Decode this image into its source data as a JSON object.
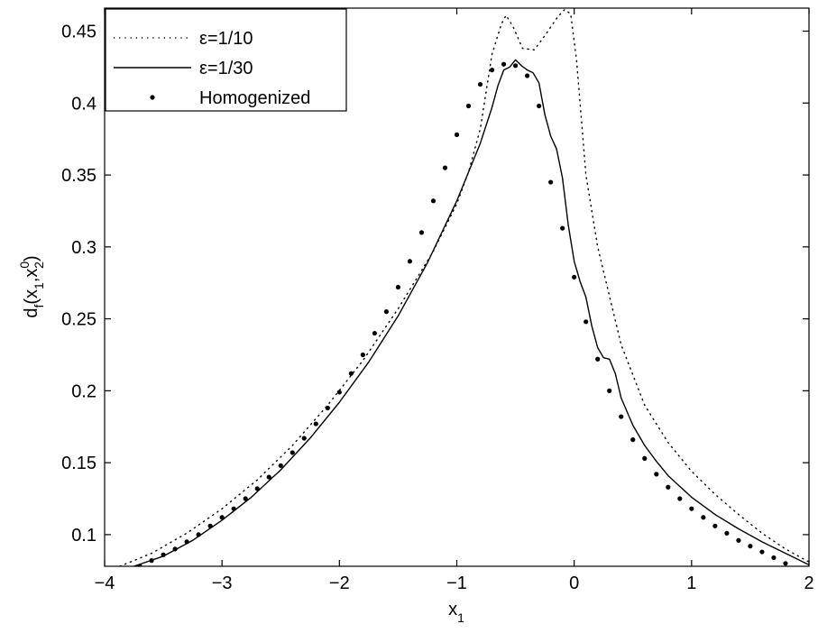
{
  "chart_data": {
    "type": "line",
    "xlabel": "x",
    "xlabel_sub": "1",
    "ylabel": {
      "d": "d",
      "d_sub": "f",
      "open": "(x",
      "x1_sub": "1",
      "comma": ",x",
      "x2_sup": "0",
      "x2_sub": "2",
      "close": ")"
    },
    "xlim": [
      -4,
      2
    ],
    "ylim": [
      0.078,
      0.466
    ],
    "x_ticks": [
      -4,
      -3,
      -2,
      -1,
      0,
      1,
      2
    ],
    "x_tick_labels": [
      "−4",
      "−3",
      "−2",
      "−1",
      "0",
      "1",
      "2"
    ],
    "y_ticks": [
      0.1,
      0.15,
      0.2,
      0.25,
      0.3,
      0.35,
      0.4,
      0.45
    ],
    "y_tick_labels": [
      "0.1",
      "0.15",
      "0.2",
      "0.25",
      "0.3",
      "0.35",
      "0.4",
      "0.45"
    ],
    "grid": false,
    "legend_position": "top-left",
    "series": [
      {
        "name": "ε=1/10",
        "style": "dotted",
        "color": "#000000",
        "points": [
          [
            -3.87,
            0.078
          ],
          [
            -3.6,
            0.087
          ],
          [
            -3.3,
            0.101
          ],
          [
            -3.0,
            0.118
          ],
          [
            -2.7,
            0.138
          ],
          [
            -2.4,
            0.162
          ],
          [
            -2.1,
            0.19
          ],
          [
            -1.8,
            0.221
          ],
          [
            -1.5,
            0.257
          ],
          [
            -1.2,
            0.297
          ],
          [
            -1.0,
            0.33
          ],
          [
            -0.9,
            0.352
          ],
          [
            -0.8,
            0.382
          ],
          [
            -0.7,
            0.434
          ],
          [
            -0.62,
            0.455
          ],
          [
            -0.58,
            0.461
          ],
          [
            -0.52,
            0.453
          ],
          [
            -0.44,
            0.438
          ],
          [
            -0.34,
            0.437
          ],
          [
            -0.24,
            0.448
          ],
          [
            -0.14,
            0.46
          ],
          [
            -0.08,
            0.465
          ],
          [
            -0.03,
            0.462
          ],
          [
            0.02,
            0.43
          ],
          [
            0.1,
            0.35
          ],
          [
            0.2,
            0.3
          ],
          [
            0.4,
            0.232
          ],
          [
            0.6,
            0.19
          ],
          [
            0.8,
            0.164
          ],
          [
            1.0,
            0.144
          ],
          [
            1.2,
            0.128
          ],
          [
            1.4,
            0.114
          ],
          [
            1.6,
            0.101
          ],
          [
            1.8,
            0.09
          ],
          [
            2.0,
            0.081
          ]
        ]
      },
      {
        "name": "ε=1/30",
        "style": "solid",
        "color": "#000000",
        "points": [
          [
            -3.75,
            0.078
          ],
          [
            -3.5,
            0.085
          ],
          [
            -3.25,
            0.096
          ],
          [
            -3.0,
            0.11
          ],
          [
            -2.75,
            0.126
          ],
          [
            -2.5,
            0.145
          ],
          [
            -2.25,
            0.167
          ],
          [
            -2.0,
            0.192
          ],
          [
            -1.75,
            0.22
          ],
          [
            -1.5,
            0.252
          ],
          [
            -1.25,
            0.289
          ],
          [
            -1.0,
            0.332
          ],
          [
            -0.9,
            0.352
          ],
          [
            -0.8,
            0.372
          ],
          [
            -0.7,
            0.397
          ],
          [
            -0.65,
            0.412
          ],
          [
            -0.6,
            0.423
          ],
          [
            -0.55,
            0.425
          ],
          [
            -0.5,
            0.43
          ],
          [
            -0.45,
            0.426
          ],
          [
            -0.4,
            0.423
          ],
          [
            -0.35,
            0.421
          ],
          [
            -0.3,
            0.414
          ],
          [
            -0.25,
            0.392
          ],
          [
            -0.2,
            0.377
          ],
          [
            -0.15,
            0.368
          ],
          [
            -0.1,
            0.348
          ],
          [
            -0.05,
            0.315
          ],
          [
            0.0,
            0.29
          ],
          [
            0.05,
            0.276
          ],
          [
            0.1,
            0.265
          ],
          [
            0.15,
            0.245
          ],
          [
            0.2,
            0.23
          ],
          [
            0.25,
            0.223
          ],
          [
            0.3,
            0.222
          ],
          [
            0.35,
            0.212
          ],
          [
            0.4,
            0.195
          ],
          [
            0.5,
            0.176
          ],
          [
            0.6,
            0.162
          ],
          [
            0.7,
            0.151
          ],
          [
            0.8,
            0.141
          ],
          [
            1.0,
            0.126
          ],
          [
            1.2,
            0.114
          ],
          [
            1.4,
            0.104
          ],
          [
            1.6,
            0.095
          ],
          [
            1.8,
            0.087
          ],
          [
            2.0,
            0.079
          ]
        ]
      },
      {
        "name": "Homogenized",
        "style": "markers",
        "color": "#000000",
        "x": [
          -3.7,
          -3.6,
          -3.5,
          -3.4,
          -3.3,
          -3.2,
          -3.1,
          -3.0,
          -2.9,
          -2.8,
          -2.7,
          -2.6,
          -2.5,
          -2.4,
          -2.3,
          -2.2,
          -2.1,
          -2.0,
          -1.9,
          -1.8,
          -1.7,
          -1.6,
          -1.5,
          -1.4,
          -1.3,
          -1.2,
          -1.1,
          -1.0,
          -0.9,
          -0.8,
          -0.7,
          -0.6,
          -0.5,
          -0.4,
          -0.3,
          -0.2,
          -0.1,
          0.0,
          0.1,
          0.2,
          0.3,
          0.4,
          0.5,
          0.6,
          0.7,
          0.8,
          0.9,
          1.0,
          1.1,
          1.2,
          1.3,
          1.4,
          1.5,
          1.6,
          1.7,
          1.8
        ],
        "y": [
          0.078,
          0.082,
          0.086,
          0.09,
          0.095,
          0.1,
          0.106,
          0.112,
          0.118,
          0.125,
          0.132,
          0.14,
          0.148,
          0.157,
          0.167,
          0.177,
          0.188,
          0.199,
          0.212,
          0.225,
          0.24,
          0.255,
          0.272,
          0.29,
          0.31,
          0.332,
          0.355,
          0.378,
          0.398,
          0.413,
          0.423,
          0.427,
          0.426,
          0.419,
          0.398,
          0.345,
          0.313,
          0.279,
          0.248,
          0.222,
          0.2,
          0.182,
          0.166,
          0.153,
          0.142,
          0.133,
          0.125,
          0.118,
          0.112,
          0.106,
          0.101,
          0.096,
          0.092,
          0.088,
          0.084,
          0.08
        ]
      }
    ]
  }
}
